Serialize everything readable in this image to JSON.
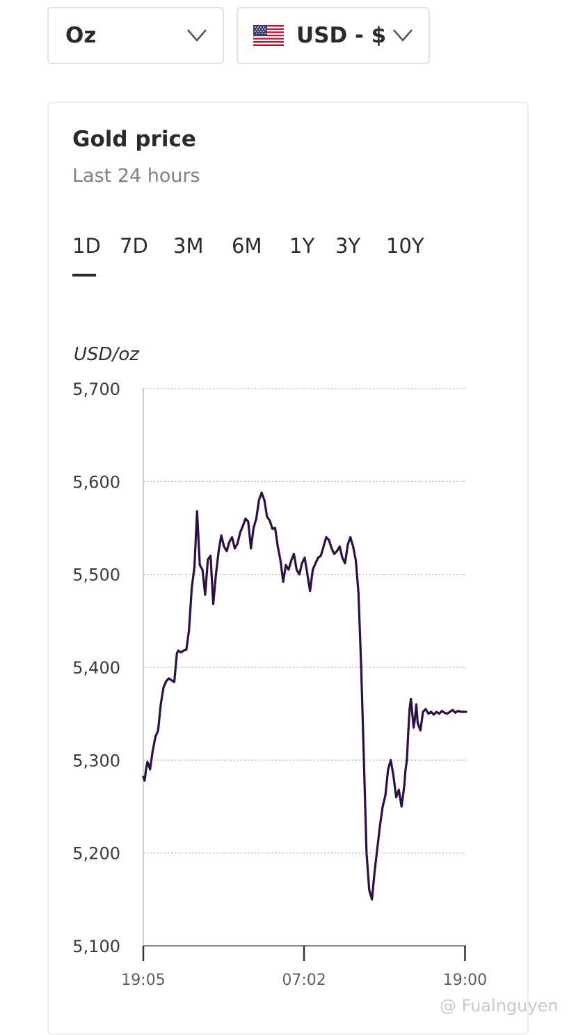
{
  "controls": {
    "unit_select": {
      "value": "Oz"
    },
    "currency_select": {
      "value": "USD - $",
      "flag_icon": "us-flag-icon"
    }
  },
  "card": {
    "title": "Gold price",
    "subtitle": "Last 24 hours",
    "tabs": [
      "1D",
      "7D",
      "3M",
      "6M",
      "1Y",
      "3Y",
      "10Y"
    ],
    "active_tab": "1D"
  },
  "colors": {
    "line": "#2e0e47",
    "grid": "#b8b8b8",
    "axis": "#8a8a8a"
  },
  "watermark": "@ Fualnguyen",
  "chart_data": {
    "type": "line",
    "title": "Gold price",
    "subtitle": "Last 24 hours",
    "ylabel": "USD/oz",
    "xlabel": "",
    "ylim": [
      5100,
      5700
    ],
    "yticks": [
      5100,
      5200,
      5300,
      5400,
      5500,
      5600,
      5700
    ],
    "ytick_labels": [
      "5,100",
      "5,200",
      "5,300",
      "5,400",
      "5,500",
      "5,600",
      "5,700"
    ],
    "xlim": [
      0,
      24
    ],
    "xticks": [
      0,
      11.95,
      23.92
    ],
    "xtick_labels": [
      "19:05",
      "07:02",
      "19:00"
    ],
    "grid": "horizontal dotted",
    "series": [
      {
        "x": [
          0.0,
          0.1,
          0.2,
          0.3,
          0.4,
          0.5,
          0.7,
          0.9,
          1.1,
          1.3,
          1.5,
          1.7,
          1.9,
          2.1,
          2.3,
          2.5,
          2.6,
          2.8,
          3.0,
          3.2,
          3.4,
          3.6,
          3.8,
          4.0,
          4.2,
          4.4,
          4.6,
          4.8,
          5.0,
          5.2,
          5.4,
          5.6,
          5.8,
          6.0,
          6.2,
          6.4,
          6.6,
          6.8,
          7.0,
          7.2,
          7.4,
          7.6,
          7.8,
          8.0,
          8.2,
          8.4,
          8.6,
          8.8,
          9.0,
          9.2,
          9.4,
          9.6,
          9.8,
          10.0,
          10.2,
          10.4,
          10.6,
          10.8,
          11.0,
          11.2,
          11.4,
          11.6,
          11.8,
          12.0,
          12.2,
          12.4,
          12.6,
          12.8,
          13.0,
          13.2,
          13.4,
          13.6,
          13.8,
          14.0,
          14.2,
          14.4,
          14.6,
          14.8,
          15.0,
          15.2,
          15.4,
          15.6,
          15.8,
          16.0,
          16.2,
          16.4,
          16.6,
          16.8,
          17.0,
          17.2,
          17.4,
          17.6,
          17.8,
          18.0,
          18.2,
          18.4,
          18.6,
          18.8,
          19.0,
          19.2,
          19.4,
          19.5,
          19.6,
          19.7,
          19.8,
          19.9,
          20.0,
          20.1,
          20.2,
          20.3,
          20.4,
          20.6,
          20.8,
          21.0,
          21.2,
          21.4,
          21.6,
          21.8,
          22.0,
          22.2,
          22.4,
          22.6,
          22.8,
          23.0,
          23.2,
          23.4,
          23.6,
          23.8,
          24.0
        ],
        "y": [
          5282,
          5278,
          5290,
          5298,
          5295,
          5290,
          5310,
          5325,
          5332,
          5360,
          5378,
          5385,
          5388,
          5386,
          5384,
          5415,
          5418,
          5416,
          5418,
          5419,
          5440,
          5485,
          5508,
          5568,
          5510,
          5505,
          5478,
          5516,
          5520,
          5468,
          5500,
          5525,
          5542,
          5530,
          5525,
          5535,
          5540,
          5528,
          5533,
          5545,
          5552,
          5560,
          5557,
          5528,
          5550,
          5560,
          5580,
          5588,
          5580,
          5562,
          5558,
          5549,
          5550,
          5530,
          5515,
          5492,
          5510,
          5505,
          5515,
          5522,
          5505,
          5500,
          5512,
          5518,
          5500,
          5482,
          5505,
          5512,
          5518,
          5520,
          5530,
          5540,
          5537,
          5528,
          5522,
          5525,
          5530,
          5518,
          5512,
          5532,
          5540,
          5530,
          5515,
          5480,
          5400,
          5300,
          5200,
          5160,
          5150,
          5180,
          5205,
          5230,
          5250,
          5262,
          5290,
          5300,
          5283,
          5260,
          5268,
          5250,
          5272,
          5290,
          5300,
          5330,
          5355,
          5366,
          5350,
          5335,
          5345,
          5360,
          5340,
          5332,
          5352,
          5355,
          5350,
          5352,
          5349,
          5352,
          5350,
          5353,
          5351,
          5350,
          5352,
          5354,
          5351,
          5353,
          5352,
          5352,
          5352
        ]
      }
    ]
  }
}
